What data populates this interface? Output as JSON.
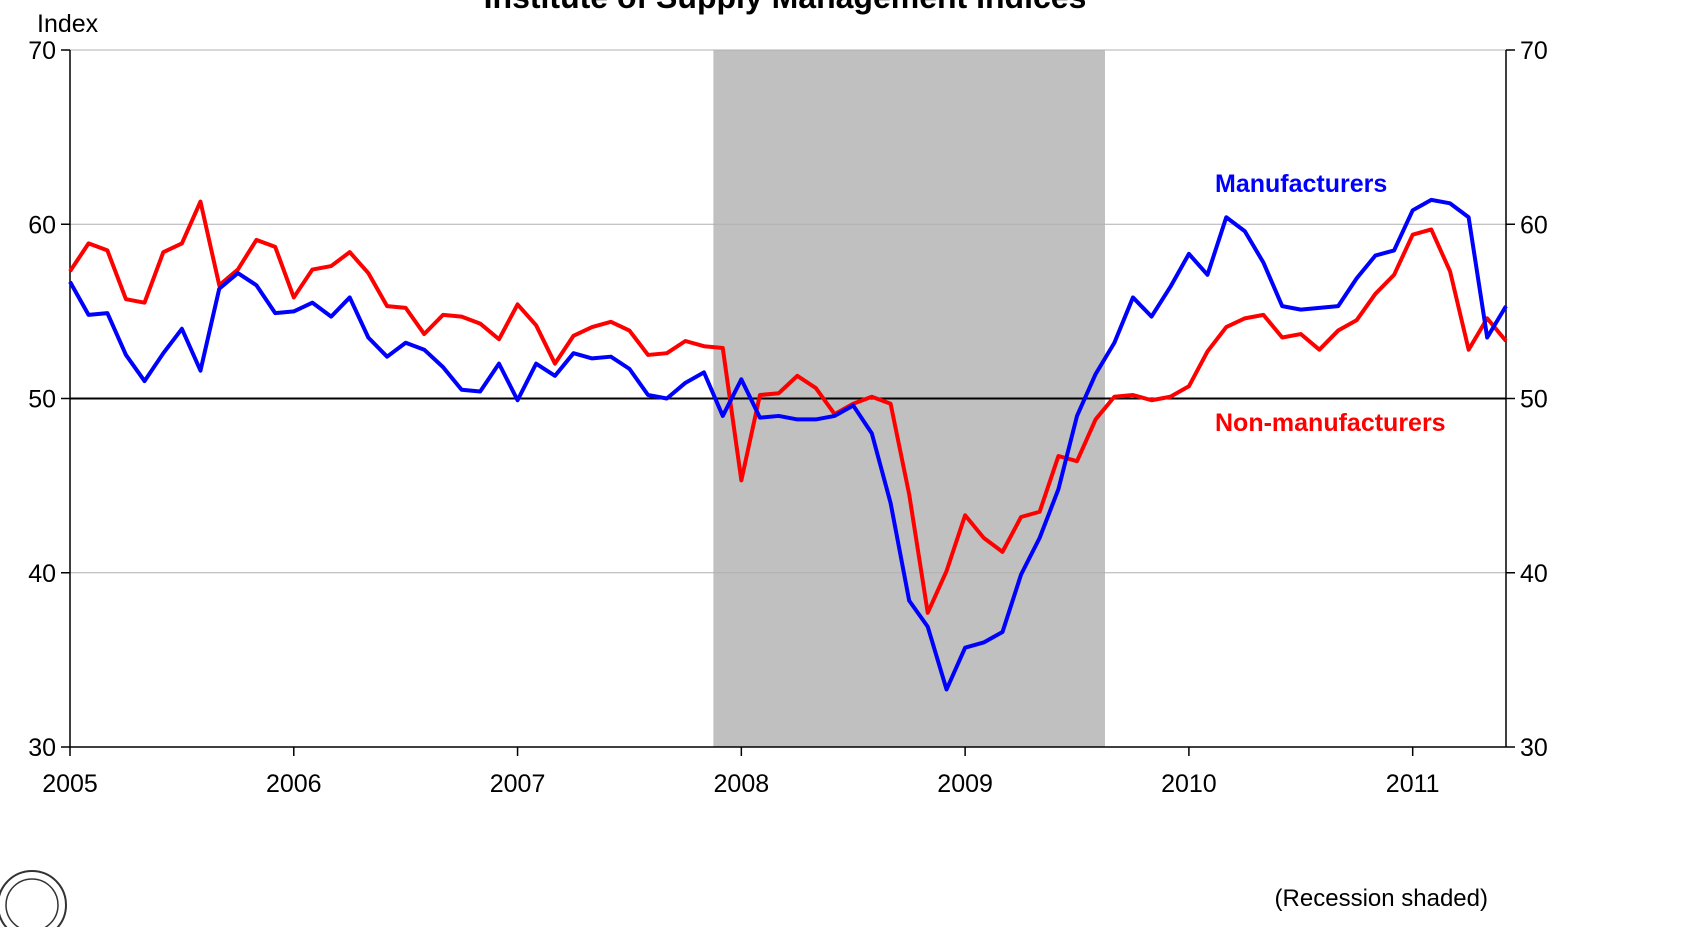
{
  "chart_data": {
    "type": "line",
    "title": "Institute of Supply Management Indices",
    "y_label": "Index",
    "annotation": "(Recession shaded)",
    "recession": [
      2007.875,
      2009.625
    ],
    "reference_line": 50,
    "grid": true,
    "xlim": [
      2005,
      2011.417
    ],
    "xticks": [
      2005,
      2006,
      2007,
      2008,
      2009,
      2010,
      2011
    ],
    "ylim": [
      30,
      70
    ],
    "yticks": [
      30,
      40,
      50,
      60,
      70
    ],
    "y2lim": [
      30,
      70
    ],
    "y2ticks": [
      30,
      40,
      50,
      60,
      70
    ],
    "x": [
      2005,
      2005.083,
      2005.167,
      2005.25,
      2005.333,
      2005.417,
      2005.5,
      2005.583,
      2005.667,
      2005.75,
      2005.833,
      2005.917,
      2006,
      2006.083,
      2006.167,
      2006.25,
      2006.333,
      2006.417,
      2006.5,
      2006.583,
      2006.667,
      2006.75,
      2006.833,
      2006.917,
      2007,
      2007.083,
      2007.167,
      2007.25,
      2007.333,
      2007.417,
      2007.5,
      2007.583,
      2007.667,
      2007.75,
      2007.833,
      2007.917,
      2008,
      2008.083,
      2008.167,
      2008.25,
      2008.333,
      2008.417,
      2008.5,
      2008.583,
      2008.667,
      2008.75,
      2008.833,
      2008.917,
      2009,
      2009.083,
      2009.167,
      2009.25,
      2009.333,
      2009.417,
      2009.5,
      2009.583,
      2009.667,
      2009.75,
      2009.833,
      2009.917,
      2010,
      2010.083,
      2010.167,
      2010.25,
      2010.333,
      2010.417,
      2010.5,
      2010.583,
      2010.667,
      2010.75,
      2010.833,
      2010.917,
      2011,
      2011.083,
      2011.167,
      2011.25,
      2011.333,
      2011.417
    ],
    "series": [
      {
        "name": "Non-manufacturers",
        "color": "#ff0000",
        "values": [
          57.3,
          58.9,
          58.5,
          55.7,
          55.5,
          58.4,
          58.9,
          61.3,
          56.5,
          57.4,
          59.1,
          58.7,
          55.8,
          57.4,
          57.6,
          58.4,
          57.2,
          55.3,
          55.2,
          53.7,
          54.8,
          54.7,
          54.3,
          53.4,
          55.4,
          54.2,
          52.0,
          53.6,
          54.1,
          54.4,
          53.9,
          52.5,
          52.6,
          53.3,
          53.0,
          52.9,
          45.3,
          50.2,
          50.3,
          51.3,
          50.6,
          49.1,
          49.7,
          50.1,
          49.7,
          44.5,
          37.7,
          40.1,
          43.3,
          42.0,
          41.2,
          43.2,
          43.5,
          46.7,
          46.4,
          48.8,
          50.1,
          50.2,
          49.9,
          50.1,
          50.7,
          52.7,
          54.1,
          54.6,
          54.8,
          53.5,
          53.7,
          52.8,
          53.9,
          54.5,
          56.0,
          57.1,
          59.4,
          59.7,
          57.3,
          52.8,
          54.6,
          53.3
        ]
      },
      {
        "name": "Manufacturers",
        "color": "#0000ff",
        "values": [
          56.7,
          54.8,
          54.9,
          52.5,
          51.0,
          52.6,
          54.0,
          51.6,
          56.3,
          57.2,
          56.5,
          54.9,
          55.0,
          55.5,
          54.7,
          55.8,
          53.5,
          52.4,
          53.2,
          52.8,
          51.8,
          50.5,
          50.4,
          52.0,
          49.9,
          52.0,
          51.3,
          52.6,
          52.3,
          52.4,
          51.7,
          50.2,
          50.0,
          50.9,
          51.5,
          49.0,
          51.1,
          48.9,
          49.0,
          48.8,
          48.8,
          49.0,
          49.6,
          48.0,
          44.0,
          38.4,
          36.9,
          33.3,
          35.7,
          36.0,
          36.6,
          39.9,
          42.0,
          44.8,
          49.0,
          51.4,
          53.2,
          55.8,
          54.7,
          56.4,
          58.3,
          57.1,
          60.4,
          59.6,
          57.8,
          55.3,
          55.1,
          55.2,
          55.3,
          56.9,
          58.2,
          58.5,
          60.8,
          61.4,
          61.2,
          60.4,
          53.5,
          55.3
        ]
      }
    ]
  }
}
